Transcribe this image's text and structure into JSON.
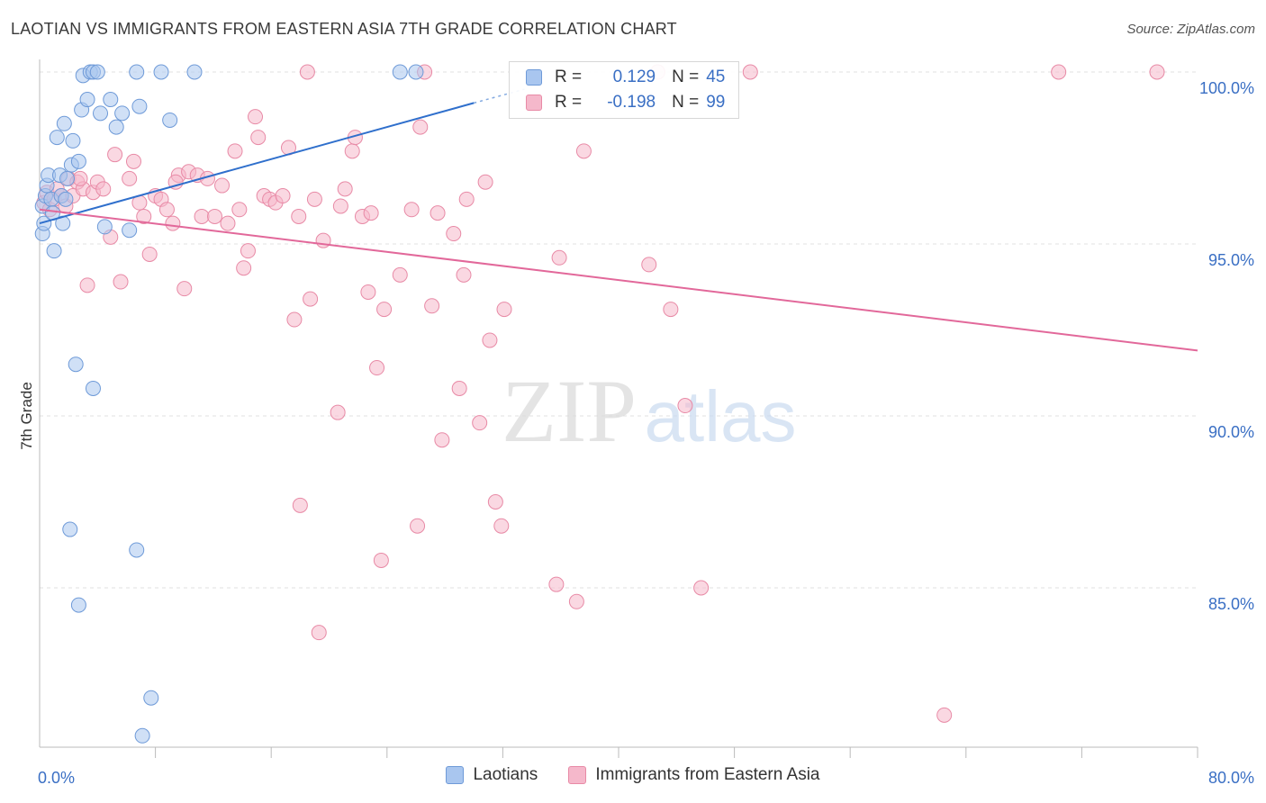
{
  "header": {
    "title": "LAOTIAN VS IMMIGRANTS FROM EASTERN ASIA 7TH GRADE CORRELATION CHART",
    "source": "Source: ZipAtlas.com"
  },
  "watermark": {
    "zip": "ZIP",
    "atlas": "atlas"
  },
  "legend": {
    "rows": [
      {
        "r_label": "R =",
        "r_value": "0.129",
        "n_label": "N =",
        "n_value": "45"
      },
      {
        "r_label": "R =",
        "r_value": "-0.198",
        "n_label": "N =",
        "n_value": "99"
      }
    ]
  },
  "bottom_legend": {
    "items": [
      "Laotians",
      "Immigrants from Eastern Asia"
    ]
  },
  "colors": {
    "blue_fill": "#a9c6ef",
    "blue_stroke": "#6e9ad8",
    "blue_line": "#2f6fcc",
    "pink_fill": "#f5b8cb",
    "pink_stroke": "#e88aa6",
    "pink_line": "#e2689a",
    "tick_text": "#3a6fc4",
    "grid": "#e2e2e2"
  },
  "chart_data": {
    "type": "scatter",
    "ylabel": "7th Grade",
    "xlim": [
      0,
      80
    ],
    "ylim": [
      80.5,
      100.8
    ],
    "x_ticks": [
      "0.0%",
      "80.0%"
    ],
    "y_ticks": [
      {
        "value": 100,
        "label": "100.0%"
      },
      {
        "value": 95,
        "label": "95.0%"
      },
      {
        "value": 90,
        "label": "90.0%"
      },
      {
        "value": 85,
        "label": "85.0%"
      }
    ],
    "grid": true,
    "legend_position": "top-center",
    "series": [
      {
        "name": "Laotians",
        "r": 0.129,
        "n": 45,
        "trend": {
          "x0": 0,
          "y0": 95.6,
          "x1": 30,
          "y1": 99.1,
          "dash_to_x": 33.5,
          "dash_to_y": 99.5
        },
        "points": [
          [
            0.2,
            95.3
          ],
          [
            0.3,
            95.6
          ],
          [
            0.2,
            96.1
          ],
          [
            0.4,
            96.4
          ],
          [
            0.5,
            96.7
          ],
          [
            0.6,
            97.0
          ],
          [
            0.8,
            96.3
          ],
          [
            0.9,
            95.9
          ],
          [
            1.0,
            94.8
          ],
          [
            1.2,
            98.1
          ],
          [
            1.4,
            97.0
          ],
          [
            1.5,
            96.4
          ],
          [
            1.6,
            95.6
          ],
          [
            1.7,
            98.5
          ],
          [
            1.9,
            96.9
          ],
          [
            2.2,
            97.3
          ],
          [
            2.3,
            98.0
          ],
          [
            2.7,
            97.4
          ],
          [
            2.9,
            98.9
          ],
          [
            3.0,
            99.9
          ],
          [
            3.3,
            99.2
          ],
          [
            3.5,
            100.0
          ],
          [
            3.7,
            100.0
          ],
          [
            4.0,
            100.0
          ],
          [
            4.2,
            98.8
          ],
          [
            4.5,
            95.5
          ],
          [
            4.9,
            99.2
          ],
          [
            5.3,
            98.4
          ],
          [
            5.7,
            98.8
          ],
          [
            6.2,
            95.4
          ],
          [
            6.7,
            100.0
          ],
          [
            6.9,
            99.0
          ],
          [
            8.4,
            100.0
          ],
          [
            9.0,
            98.6
          ],
          [
            10.7,
            100.0
          ],
          [
            24.9,
            100.0
          ],
          [
            26.0,
            100.0
          ],
          [
            2.5,
            91.5
          ],
          [
            3.7,
            90.8
          ],
          [
            2.1,
            86.7
          ],
          [
            2.7,
            84.5
          ],
          [
            6.7,
            86.1
          ],
          [
            7.7,
            81.8
          ],
          [
            7.1,
            80.7
          ],
          [
            1.8,
            96.3
          ]
        ]
      },
      {
        "name": "Immigrants from Eastern Asia",
        "r": -0.198,
        "n": 99,
        "trend": {
          "x0": 0,
          "y0": 96.0,
          "x1": 80,
          "y1": 91.9
        },
        "points": [
          [
            0.3,
            96.2
          ],
          [
            0.5,
            96.5
          ],
          [
            0.7,
            96.0
          ],
          [
            1.0,
            96.3
          ],
          [
            1.2,
            96.6
          ],
          [
            1.5,
            96.4
          ],
          [
            1.8,
            96.1
          ],
          [
            2.0,
            96.9
          ],
          [
            2.3,
            96.4
          ],
          [
            2.6,
            96.8
          ],
          [
            3.0,
            96.6
          ],
          [
            3.3,
            93.8
          ],
          [
            3.7,
            96.5
          ],
          [
            4.0,
            96.8
          ],
          [
            4.4,
            96.6
          ],
          [
            4.9,
            95.2
          ],
          [
            5.2,
            97.6
          ],
          [
            5.6,
            93.9
          ],
          [
            6.2,
            96.9
          ],
          [
            6.5,
            97.4
          ],
          [
            6.9,
            96.2
          ],
          [
            7.2,
            95.8
          ],
          [
            7.6,
            94.7
          ],
          [
            8.0,
            96.4
          ],
          [
            8.4,
            96.3
          ],
          [
            8.8,
            96.0
          ],
          [
            9.2,
            95.6
          ],
          [
            9.6,
            97.0
          ],
          [
            10.0,
            93.7
          ],
          [
            10.3,
            97.1
          ],
          [
            10.9,
            97.0
          ],
          [
            11.2,
            95.8
          ],
          [
            11.6,
            96.9
          ],
          [
            12.1,
            95.8
          ],
          [
            12.6,
            96.7
          ],
          [
            13.0,
            95.6
          ],
          [
            13.5,
            97.7
          ],
          [
            13.8,
            96.0
          ],
          [
            14.1,
            94.3
          ],
          [
            14.4,
            94.8
          ],
          [
            14.9,
            98.7
          ],
          [
            15.1,
            98.1
          ],
          [
            15.5,
            96.4
          ],
          [
            15.9,
            96.3
          ],
          [
            16.3,
            96.2
          ],
          [
            16.8,
            96.4
          ],
          [
            17.2,
            97.8
          ],
          [
            17.6,
            92.8
          ],
          [
            17.9,
            95.8
          ],
          [
            18.5,
            100.0
          ],
          [
            18.7,
            93.4
          ],
          [
            19.0,
            96.3
          ],
          [
            19.6,
            95.1
          ],
          [
            20.6,
            90.1
          ],
          [
            20.8,
            96.1
          ],
          [
            21.1,
            96.6
          ],
          [
            21.6,
            97.7
          ],
          [
            21.8,
            98.1
          ],
          [
            22.3,
            95.8
          ],
          [
            22.9,
            95.9
          ],
          [
            22.7,
            93.6
          ],
          [
            23.3,
            91.4
          ],
          [
            23.8,
            93.1
          ],
          [
            24.9,
            94.1
          ],
          [
            25.7,
            96.0
          ],
          [
            26.3,
            98.4
          ],
          [
            26.6,
            100.0
          ],
          [
            27.1,
            93.2
          ],
          [
            27.5,
            95.9
          ],
          [
            27.8,
            89.3
          ],
          [
            28.6,
            95.3
          ],
          [
            29.0,
            90.8
          ],
          [
            29.3,
            94.1
          ],
          [
            29.5,
            96.3
          ],
          [
            30.4,
            89.8
          ],
          [
            30.8,
            96.8
          ],
          [
            31.1,
            92.2
          ],
          [
            31.5,
            87.5
          ],
          [
            31.9,
            86.8
          ],
          [
            32.1,
            93.1
          ],
          [
            35.7,
            85.1
          ],
          [
            35.9,
            94.6
          ],
          [
            37.1,
            84.6
          ],
          [
            37.6,
            97.7
          ],
          [
            42.1,
            94.4
          ],
          [
            42.7,
            100.0
          ],
          [
            43.6,
            93.1
          ],
          [
            44.6,
            90.3
          ],
          [
            45.7,
            85.0
          ],
          [
            49.1,
            100.0
          ],
          [
            62.5,
            81.3
          ],
          [
            70.4,
            100.0
          ],
          [
            77.2,
            100.0
          ],
          [
            26.1,
            86.8
          ],
          [
            23.6,
            85.8
          ],
          [
            18.0,
            87.4
          ],
          [
            19.3,
            83.7
          ],
          [
            9.4,
            96.8
          ],
          [
            2.8,
            96.9
          ]
        ]
      }
    ]
  }
}
